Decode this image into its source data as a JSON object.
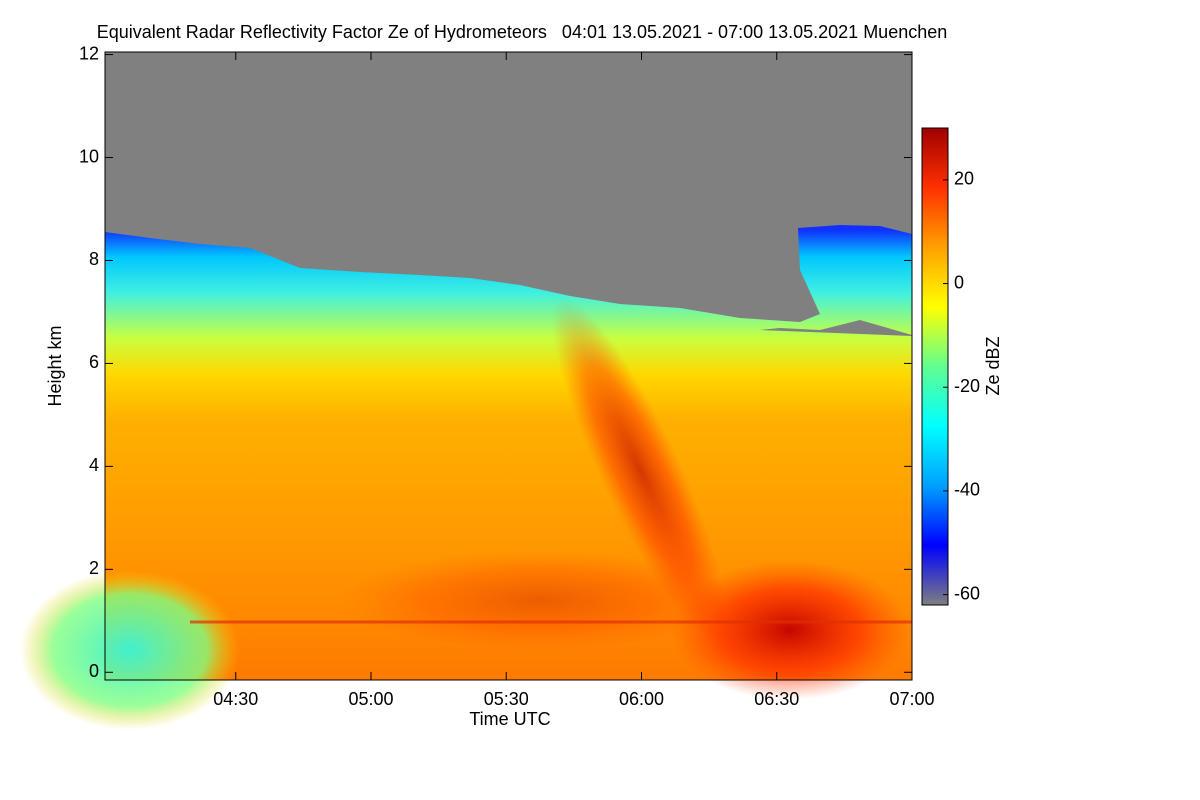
{
  "chart_data": {
    "type": "heatmap",
    "title": "Equivalent Radar Reflectivity Factor Ze of Hydrometeors   04:01 13.05.2021 - 07:00 13.05.2021 Muenchen",
    "x_label": "Time UTC",
    "y_label": "Height km",
    "xlim": [
      241,
      420
    ],
    "xticks": [
      {
        "value": 270,
        "label": "04:30"
      },
      {
        "value": 300,
        "label": "05:00"
      },
      {
        "value": 330,
        "label": "05:30"
      },
      {
        "value": 360,
        "label": "06:00"
      },
      {
        "value": 390,
        "label": "06:30"
      },
      {
        "value": 420,
        "label": "07:00"
      }
    ],
    "ylim": [
      -0.15,
      12.05
    ],
    "yticks": [
      0,
      2,
      4,
      6,
      8,
      10,
      12
    ],
    "colorbar": {
      "label": "Ze dBZ",
      "lim": [
        -62,
        30
      ],
      "ticks": [
        -60,
        -40,
        -20,
        0,
        20
      ],
      "colors": [
        "#7f7f7f",
        "#0000ff",
        "#00a0ff",
        "#00ffff",
        "#60ff90",
        "#ffff00",
        "#ffa000",
        "#ff3000",
        "#a00000"
      ]
    }
  }
}
